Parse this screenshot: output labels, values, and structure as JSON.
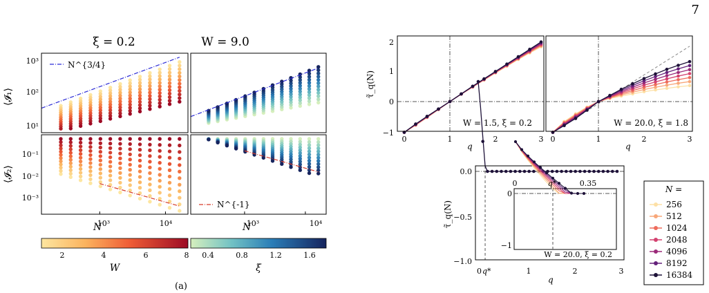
{
  "page_number": "7",
  "left_figure": {
    "panel_titles": [
      "ξ = 0.2",
      "W = 9.0"
    ],
    "ylabels": [
      "⟨𝓘₁⟩",
      "⟨𝓘₂⟩"
    ],
    "xlabel": "N",
    "legend_top": "N^{3/4}",
    "legend_bottom": "N^{-1}",
    "colorbar_W": {
      "label": "W",
      "ticks": [
        "2",
        "4",
        "6",
        "8"
      ],
      "range": [
        1,
        8
      ]
    },
    "colorbar_xi": {
      "label": "ξ",
      "ticks": [
        "0.4",
        "0.8",
        "1.2",
        "1.6"
      ],
      "range": [
        0.2,
        1.8
      ]
    },
    "ytick_top": [
      "10¹",
      "10²",
      "10³"
    ],
    "ytick_bottom": [
      "10⁻³",
      "10⁻²",
      "10⁻¹"
    ],
    "xticks": [
      "10³",
      "10⁴"
    ],
    "caption": "(a)"
  },
  "right_figure": {
    "ylabel": "τ̃_q(N)",
    "xlabel": "q",
    "panel_labels": [
      "W = 1.5, ξ = 0.2",
      "W = 20.0, ξ = 1.8"
    ],
    "inset_label": "W = 20.0, ξ = 0.2",
    "yticks_top": [
      "−1",
      "0",
      "1",
      "2"
    ],
    "xticks": [
      "0",
      "1",
      "2",
      "3"
    ],
    "yticks_bottom": [
      "−1.0",
      "−0.5",
      "0.0"
    ],
    "qstar_label": "q*",
    "inset_top_ticks": [
      "0",
      "q*",
      "0.35"
    ],
    "inset_yticks": [
      "−1",
      "0"
    ],
    "legend_title": "N =",
    "legend_entries": [
      "256",
      "512",
      "1024",
      "2048",
      "4096",
      "8192",
      "16384"
    ],
    "legend_colors": [
      "#fde0a6",
      "#f8a779",
      "#ee6b5b",
      "#d4416f",
      "#9b2a79",
      "#64207a",
      "#1d1138"
    ]
  },
  "chart_data": [
    {
      "type": "scatter",
      "panel": "top-left",
      "title": "ξ = 0.2",
      "xlabel": "",
      "ylabel": "⟨𝓘₁⟩",
      "xscale": "log",
      "yscale": "log",
      "xlim": [
        130,
        22000
      ],
      "ylim": [
        7,
        2000
      ],
      "colorbar": "W",
      "x": [
        256,
        362,
        512,
        724,
        1024,
        1448,
        2048,
        2896,
        4096,
        5793,
        8192,
        11585,
        16384
      ],
      "fit_line": {
        "name": "N^{3/4}",
        "x": [
          130,
          16384
        ],
        "y": [
          40,
          1500
        ]
      }
    },
    {
      "type": "scatter",
      "panel": "top-right",
      "title": "W = 9.0",
      "xscale": "log",
      "yscale": "log",
      "colorbar": "ξ",
      "x": [
        256,
        362,
        512,
        724,
        1024,
        1448,
        2048,
        2896,
        4096,
        5793,
        8192,
        11585,
        16384
      ],
      "fit_line": {
        "name": "N^{3/4}",
        "x": [
          130,
          16384
        ],
        "y": [
          22,
          700
        ]
      }
    },
    {
      "type": "scatter",
      "panel": "bottom-left",
      "xlabel": "N",
      "ylabel": "⟨𝓘₂⟩",
      "xscale": "log",
      "yscale": "log",
      "ylim": [
        0.0001,
        0.8
      ],
      "colorbar": "W",
      "fit_line": {
        "name": "N^{-1}",
        "x": [
          1000,
          16384
        ],
        "y": [
          0.0032,
          0.00025
        ]
      }
    },
    {
      "type": "scatter",
      "panel": "bottom-right",
      "xlabel": "N",
      "xscale": "log",
      "yscale": "log",
      "colorbar": "ξ",
      "fit_line": {
        "name": "N^{-1}",
        "x": [
          1000,
          16384
        ],
        "y": [
          0.13,
          0.012
        ]
      }
    },
    {
      "type": "line",
      "panel": "right-top-left",
      "xlabel": "q",
      "ylabel": "τ̃_q(N)",
      "xlim": [
        -0.1,
        3.05
      ],
      "ylim": [
        -1.1,
        2.1
      ],
      "label": "W = 1.5, ξ = 0.2",
      "x": [
        0,
        0.25,
        0.5,
        0.75,
        1,
        1.25,
        1.5,
        1.75,
        2,
        2.25,
        2.5,
        2.75,
        3
      ],
      "series": [
        {
          "name": "256",
          "values": [
            -1,
            -0.77,
            -0.52,
            -0.26,
            0,
            0.24,
            0.47,
            0.7,
            0.93,
            1.15,
            1.37,
            1.58,
            1.78
          ]
        },
        {
          "name": "16384",
          "values": [
            -1,
            -0.73,
            -0.48,
            -0.24,
            0,
            0.25,
            0.5,
            0.74,
            0.98,
            1.22,
            1.46,
            1.7,
            1.94
          ]
        }
      ]
    },
    {
      "type": "line",
      "panel": "right-top-right",
      "xlabel": "q",
      "xlim": [
        -0.1,
        3.05
      ],
      "ylim": [
        -1.1,
        2.1
      ],
      "label": "W = 20.0, ξ = 1.8",
      "x": [
        0,
        0.25,
        0.5,
        0.75,
        1,
        1.25,
        1.5,
        1.75,
        2,
        2.25,
        2.5,
        2.75,
        3
      ],
      "series": [
        {
          "name": "256",
          "values": [
            -1,
            -0.65,
            -0.4,
            -0.18,
            0,
            0.1,
            0.18,
            0.25,
            0.32,
            0.38,
            0.43,
            0.48,
            0.52
          ]
        },
        {
          "name": "16384",
          "values": [
            -1,
            -0.78,
            -0.55,
            -0.28,
            0,
            0.2,
            0.4,
            0.58,
            0.75,
            0.9,
            1.05,
            1.18,
            1.3
          ]
        }
      ]
    },
    {
      "type": "line",
      "panel": "right-bottom",
      "xlabel": "q",
      "ylabel": "τ̃_q(N)",
      "xlim": [
        -0.1,
        3.05
      ],
      "ylim": [
        -1.05,
        0.05
      ],
      "label": "W = 20.0, ξ = 0.2",
      "x": [
        0,
        0.05,
        0.1,
        0.15,
        0.2,
        0.3,
        0.5,
        1,
        1.5,
        2,
        2.5,
        3
      ],
      "series": [
        {
          "name": "16384",
          "values": [
            -1,
            -0.72,
            -0.38,
            -0.06,
            0,
            0,
            0,
            0,
            0,
            0,
            0,
            0
          ]
        }
      ]
    }
  ]
}
